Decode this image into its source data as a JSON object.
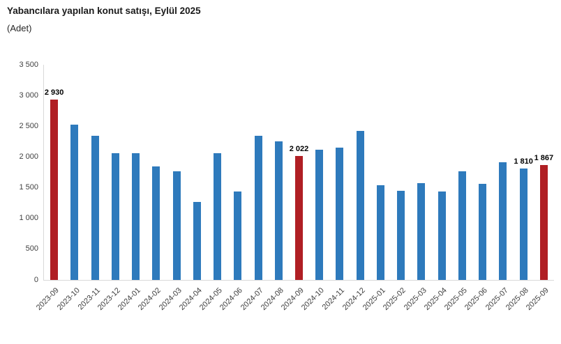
{
  "header": {
    "title": "Yabancılara yapılan konut satışı, Eylül 2025",
    "subtitle": "(Adet)"
  },
  "colors": {
    "bar": "#2e7abc",
    "highlight": "#b01f24",
    "axis_line": "#d9d9d9",
    "tick_text": "#404040",
    "data_label_text": "#000000"
  },
  "chart_data": {
    "type": "bar",
    "title": "Yabancılara yapılan konut satışı, Eylül 2025",
    "subtitle": "(Adet)",
    "xlabel": "",
    "ylabel": "",
    "ylim": [
      0,
      3500
    ],
    "ytick_step": 500,
    "yticks": [
      "0",
      "500",
      "1 000",
      "1 500",
      "2 000",
      "2 500",
      "3 000",
      "3 500"
    ],
    "grid": false,
    "legend": "none",
    "categories": [
      "2023-09",
      "2023-10",
      "2023-11",
      "2023-12",
      "2024-01",
      "2024-02",
      "2024-03",
      "2024-04",
      "2024-05",
      "2024-06",
      "2024-07",
      "2024-08",
      "2024-09",
      "2024-10",
      "2024-11",
      "2024-12",
      "2025-01",
      "2025-02",
      "2025-03",
      "2025-04",
      "2025-05",
      "2025-06",
      "2025-07",
      "2025-08",
      "2025-09"
    ],
    "values": [
      2930,
      2530,
      2340,
      2060,
      2060,
      1850,
      1770,
      1270,
      2060,
      1440,
      2350,
      2250,
      2022,
      2120,
      2150,
      2420,
      1540,
      1450,
      1570,
      1440,
      1770,
      1560,
      1910,
      1810,
      1867
    ],
    "highlighted_categories": [
      "2023-09",
      "2024-09",
      "2025-09"
    ],
    "data_labels": {
      "2023-09": "2 930",
      "2024-09": "2 022",
      "2025-08": "1 810",
      "2025-09": "1 867"
    }
  }
}
